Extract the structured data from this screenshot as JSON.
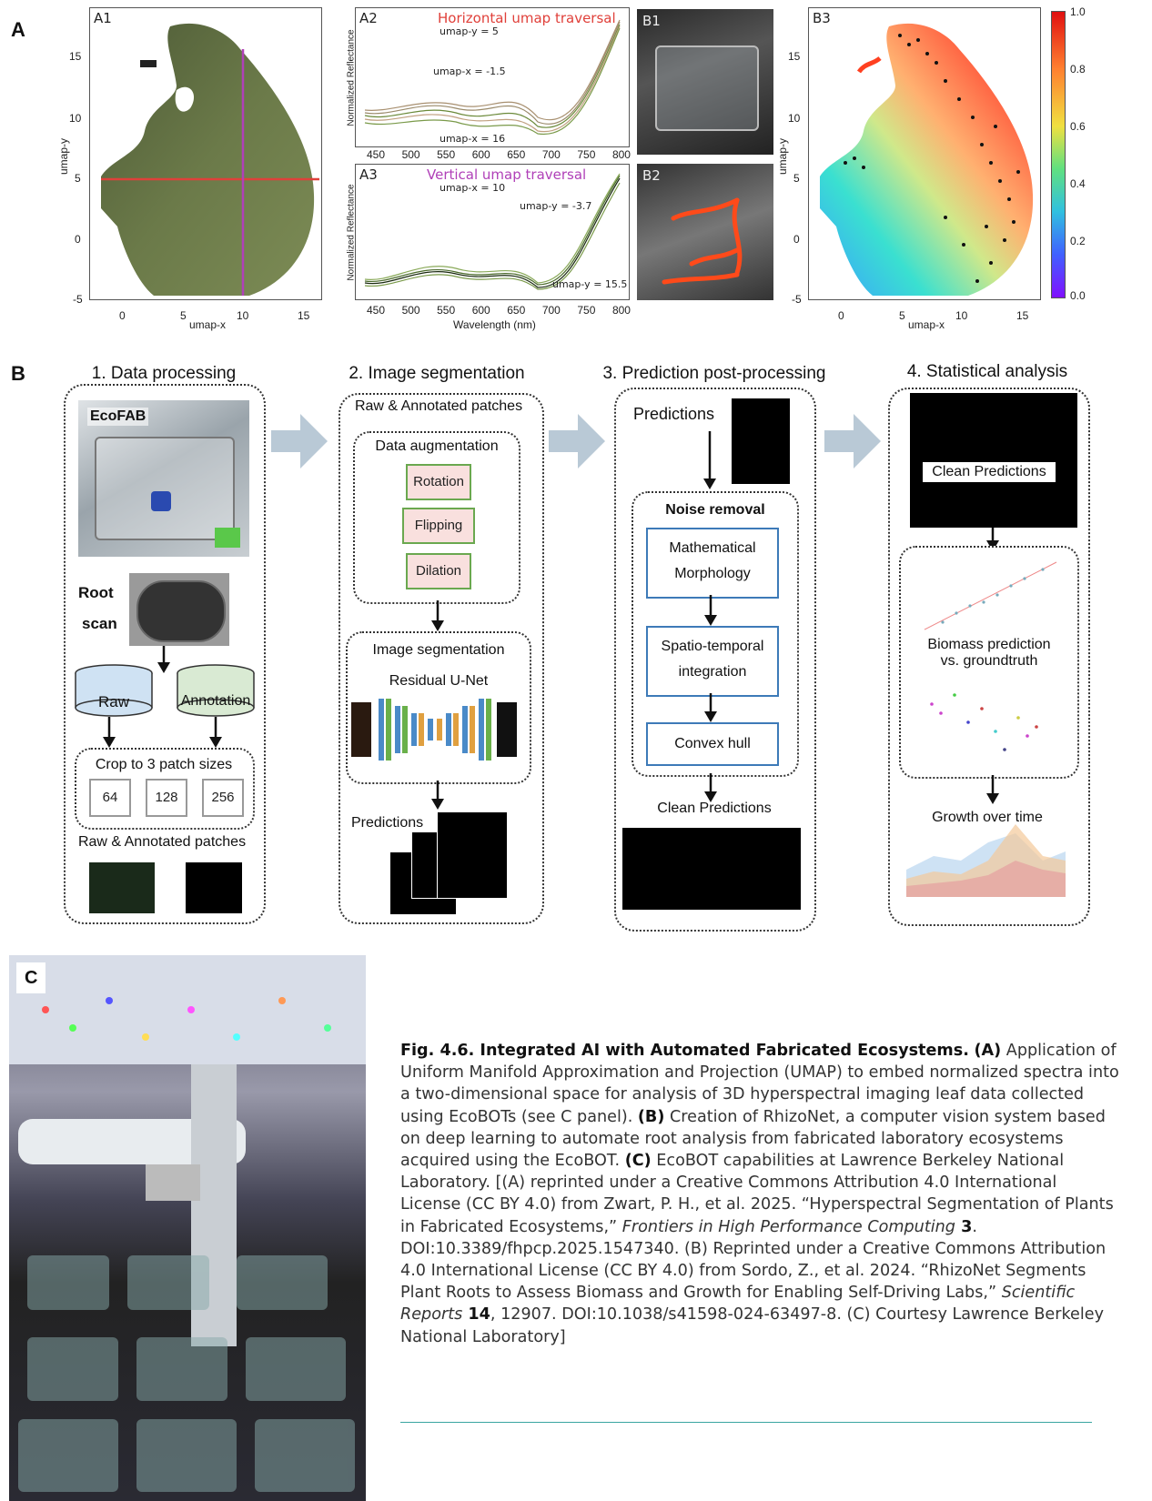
{
  "panels": {
    "A": "A",
    "B": "B",
    "C": "C"
  },
  "panelA": {
    "A1": {
      "label": "A1",
      "xlabel": "umap-x",
      "ylabel": "umap-y",
      "xticks": [
        "0",
        "5",
        "10",
        "15"
      ],
      "yticks": [
        "15",
        "10",
        "5",
        "0",
        "-5"
      ]
    },
    "A2": {
      "label": "A2",
      "title": "Horizontal umap traversal",
      "ylabel": "Normalized Reflectance",
      "annotations": [
        "umap-y = 5",
        "umap-x = -1.5",
        "umap-x = 16"
      ],
      "xticks": [
        "450",
        "500",
        "550",
        "600",
        "650",
        "700",
        "750",
        "800"
      ]
    },
    "A3": {
      "label": "A3",
      "title": "Vertical umap traversal",
      "ylabel": "Normalized Reflectance",
      "xlabel": "Wavelength (nm)",
      "annotations": [
        "umap-x = 10",
        "umap-y = -3.7",
        "umap-y = 15.5"
      ],
      "xticks": [
        "450",
        "500",
        "550",
        "600",
        "650",
        "700",
        "750",
        "800"
      ]
    },
    "B1": {
      "label": "B1"
    },
    "B2": {
      "label": "B2"
    },
    "B3": {
      "label": "B3",
      "xlabel": "umap-x",
      "ylabel": "umap-y",
      "xticks": [
        "0",
        "5",
        "10",
        "15"
      ],
      "yticks": [
        "15",
        "10",
        "5",
        "0",
        "-5"
      ],
      "colorbar": [
        "1.0",
        "0.8",
        "0.6",
        "0.4",
        "0.2",
        "0.0"
      ]
    }
  },
  "panelB": {
    "step1": {
      "title": "1. Data processing",
      "ecofab": "EcoFAB",
      "root_scan_1": "Root",
      "root_scan_2": "scan",
      "raw": "Raw",
      "annotation": "Annotation",
      "crop": "Crop to 3 patch sizes",
      "sizes": [
        "64",
        "128",
        "256"
      ],
      "patches": "Raw & Annotated patches"
    },
    "step2": {
      "title": "2. Image segmentation",
      "patches": "Raw & Annotated patches",
      "augmentation": "Data augmentation",
      "aug_items": [
        "Rotation",
        "Flipping",
        "Dilation"
      ],
      "segmentation": "Image segmentation",
      "network": "Residual U-Net",
      "predictions": "Predictions"
    },
    "step3": {
      "title": "3. Prediction post-processing",
      "predictions": "Predictions",
      "noise": "Noise removal",
      "morph_1": "Mathematical",
      "morph_2": "Morphology",
      "spatio_1": "Spatio-temporal",
      "spatio_2": "integration",
      "hull": "Convex hull",
      "clean": "Clean Predictions"
    },
    "step4": {
      "title": "4. Statistical analysis",
      "clean": "Clean Predictions",
      "biomass_1": "Biomass prediction",
      "biomass_2": "vs. groundtruth",
      "growth": "Growth over time"
    }
  },
  "caption": {
    "fig": "Fig. 4.6. Integrated AI with Automated Fabricated Ecosystems.",
    "a_tag": "(A)",
    "a_text": " Application of Uniform Manifold Approximation and Projection (UMAP) to embed normalized spectra into a two-dimensional space for analysis of 3D hyperspectral imaging leaf data collected using EcoBOTs (see C panel). ",
    "b_tag": "(B)",
    "b_text": " Creation of RhizoNet, a computer vision system based on deep learning to automate root analysis from fabricated laboratory ecosystems acquired using the EcoBOT. ",
    "c_tag": "(C)",
    "c_text": " EcoBOT capabilities at Lawrence Berkeley National Laboratory. [(A) reprinted under a Creative Commons Attribution 4.0 International License (CC BY 4.0) from Zwart, P. H., et al. 2025. “Hyperspectral Segmentation of Plants in Fabricated Ecosystems,” ",
    "journal1": "Frontiers in High Performance Computing",
    "vol1": " 3",
    "ref1_tail": ". DOI:10.3389/fhpcp.2025.1547340. (B) Reprinted under a Creative Commons Attribution 4.0 International License (CC BY 4.0) from Sordo, Z., et al. 2024. “RhizoNet Segments Plant Roots to Assess Biomass and Growth for Enabling Self-Driving Labs,” ",
    "journal2": "Scientific Reports",
    "vol2": " 14",
    "ref2_tail": ", 12907. DOI:10.1038/s41598-024-63497-8. (C) Courtesy Lawrence Berkeley National Laboratory]"
  },
  "colors": {
    "red_line": "#e0403a",
    "magenta_line": "#b040b8",
    "arrow_gray": "#b9c9d6",
    "box_blue": "#3d7ab8",
    "box_green": "#6aa84f",
    "rule": "#3aa5a0"
  }
}
